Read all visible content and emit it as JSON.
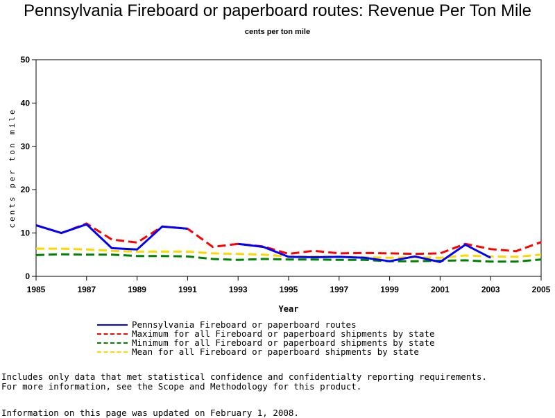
{
  "chart_data": {
    "type": "line",
    "title": "Pennsylvania Fireboard or paperboard routes: Revenue Per Ton Mile",
    "subtitle": "cents per ton mile",
    "xlabel": "Year",
    "ylabel": "cents per ton mile",
    "xlim": [
      1985,
      2005
    ],
    "ylim": [
      0,
      50
    ],
    "x_ticks": [
      1985,
      1987,
      1989,
      1991,
      1993,
      1995,
      1997,
      1999,
      2001,
      2003,
      2005
    ],
    "y_ticks": [
      0,
      10,
      20,
      30,
      40,
      50
    ],
    "grid": false,
    "legend_position": "bottom",
    "series": [
      {
        "name": "Pennsylvania Fireboard or paperboard routes",
        "color": "#0000ff",
        "style": "solid",
        "x": [
          1985,
          1986,
          1987,
          1988,
          1989,
          1990,
          1991,
          null,
          1993,
          1994,
          1995,
          1996,
          1997,
          1998,
          1999,
          2000,
          2001,
          2002,
          2003
        ],
        "y": [
          11.8,
          10.0,
          12.0,
          6.5,
          6.2,
          11.5,
          11.0,
          null,
          7.5,
          6.8,
          4.5,
          4.4,
          4.5,
          4.3,
          3.5,
          4.6,
          3.3,
          7.3,
          4.3
        ]
      },
      {
        "name": "Maximum for all Fireboard or paperboard shipments by state",
        "color": "#ff0000",
        "style": "dashed",
        "x": [
          1985,
          1986,
          1987,
          1988,
          1989,
          1990,
          1991,
          1992,
          1993,
          1994,
          1995,
          1996,
          1997,
          1998,
          1999,
          2000,
          2001,
          2002,
          2003,
          2004,
          2005
        ],
        "y": [
          11.8,
          10.0,
          12.2,
          8.5,
          7.8,
          11.5,
          11.0,
          6.8,
          7.5,
          6.9,
          5.2,
          5.9,
          5.3,
          5.4,
          5.3,
          5.2,
          5.3,
          7.5,
          6.3,
          5.8,
          7.9
        ]
      },
      {
        "name": "Minimum for all Fireboard or paperboard shipments by state",
        "color": "#008000",
        "style": "dashed",
        "x": [
          1985,
          1986,
          1987,
          1988,
          1989,
          1990,
          1991,
          1992,
          1993,
          1994,
          1995,
          1996,
          1997,
          1998,
          1999,
          2000,
          2001,
          2002,
          2003,
          2004,
          2005
        ],
        "y": [
          4.9,
          5.1,
          5.0,
          5.0,
          4.7,
          4.7,
          4.6,
          4.0,
          3.8,
          4.0,
          3.9,
          3.9,
          3.8,
          3.8,
          3.5,
          3.5,
          3.6,
          3.7,
          3.4,
          3.4,
          3.9
        ]
      },
      {
        "name": "Mean for all Fireboard or paperboard shipments by state",
        "color": "#ffd700",
        "style": "dashed",
        "x": [
          1985,
          1986,
          1987,
          1988,
          1989,
          1990,
          1991,
          1992,
          1993,
          1994,
          1995,
          1996,
          1997,
          1998,
          1999,
          2000,
          2001,
          2002,
          2003,
          2004,
          2005
        ],
        "y": [
          6.4,
          6.4,
          6.2,
          5.9,
          5.7,
          5.7,
          5.7,
          5.3,
          5.2,
          5.0,
          4.6,
          4.6,
          4.5,
          4.4,
          4.3,
          4.4,
          4.3,
          4.8,
          4.6,
          4.5,
          5.0
        ]
      }
    ]
  },
  "footnotes": {
    "line1": "Includes only data that met statistical confidence and confidentialty reporting requirements.",
    "line2": "For more information, see the Scope and Methodology for this product."
  },
  "updated": "Information on this page was updated on February 1, 2008."
}
